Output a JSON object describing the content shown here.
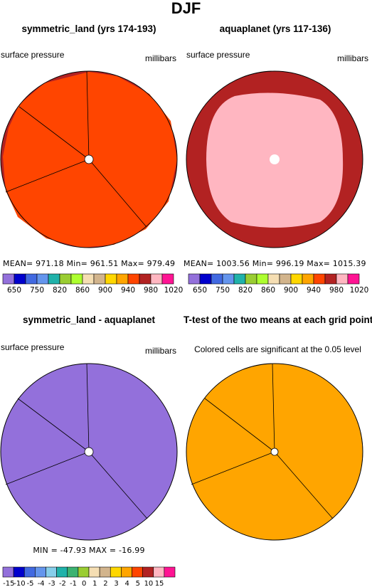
{
  "figure": {
    "title": "DJF"
  },
  "panels": [
    {
      "title": "symmetric_land (yrs 174-193)",
      "left_label": "surface pressure",
      "right_label": "millibars",
      "stats": "MEAN= 971.18    Min= 961.51    Max= 979.49"
    },
    {
      "title": "aquaplanet (yrs 117-136)",
      "left_label": "surface pressure",
      "right_label": "millibars",
      "stats": "MEAN= 1003.56   Min= 996.19    Max= 1015.39"
    },
    {
      "title": "symmetric_land - aquaplanet",
      "left_label": "surface pressure",
      "right_label": "millibars",
      "stats": "MIN = -47.93  MAX = -16.99"
    },
    {
      "title": "T-test of the two means at each grid point",
      "left_label": "Colored cells are significant at the 0.05 level",
      "right_label": "",
      "stats": ""
    }
  ],
  "chart_data": [
    {
      "type": "heatmap",
      "title": "symmetric_land (yrs 174-193)",
      "variable": "surface pressure",
      "units": "millibars",
      "summary": {
        "mean": 971.18,
        "min": 961.51,
        "max": 979.49
      },
      "field": {
        "inner_level": "960-980",
        "inner_color": "#ff4500",
        "outer_level": "980-1000",
        "outer_color": "#b22222"
      },
      "colorbar": {
        "labels": [
          "650",
          "750",
          "820",
          "860",
          "900",
          "940",
          "980",
          "1020"
        ],
        "colors": [
          "#9370db",
          "#0000cd",
          "#4169e1",
          "#6495ed",
          "#20b2aa",
          "#9acd32",
          "#adff2f",
          "#f5deb3",
          "#d2b48c",
          "#ffd700",
          "#ffa500",
          "#ff4500",
          "#b22222",
          "#ffb6c1",
          "#ff1493"
        ]
      }
    },
    {
      "type": "heatmap",
      "title": "aquaplanet (yrs 117-136)",
      "variable": "surface pressure",
      "units": "millibars",
      "summary": {
        "mean": 1003.56,
        "min": 996.19,
        "max": 1015.39
      },
      "field": {
        "inner_level": "1000-1020",
        "inner_color": "#ffb6c1",
        "outer_level": "980-1000",
        "outer_color": "#b22222"
      },
      "colorbar": {
        "labels": [
          "650",
          "750",
          "820",
          "860",
          "900",
          "940",
          "980",
          "1020"
        ],
        "colors": [
          "#9370db",
          "#0000cd",
          "#4169e1",
          "#6495ed",
          "#20b2aa",
          "#9acd32",
          "#adff2f",
          "#f5deb3",
          "#d2b48c",
          "#ffd700",
          "#ffa500",
          "#ff4500",
          "#b22222",
          "#ffb6c1",
          "#ff1493"
        ]
      }
    },
    {
      "type": "heatmap",
      "title": "symmetric_land - aquaplanet",
      "variable": "surface pressure",
      "units": "millibars",
      "summary": {
        "min": -47.93,
        "max": -16.99
      },
      "field": {
        "level": "< -15",
        "color": "#9370db"
      },
      "colorbar": {
        "labels": [
          "-15",
          "-10",
          "-5",
          "-4",
          "-3",
          "-2",
          "-1",
          "0",
          "1",
          "2",
          "3",
          "4",
          "5",
          "10",
          "15"
        ],
        "colors": [
          "#9370db",
          "#0000cd",
          "#4169e1",
          "#6495ed",
          "#87ceeb",
          "#20b2aa",
          "#3cb371",
          "#9acd32",
          "#f5deb3",
          "#d2b48c",
          "#ffd700",
          "#ffa500",
          "#ff4500",
          "#b22222",
          "#ffb6c1",
          "#ff1493"
        ]
      }
    },
    {
      "type": "heatmap",
      "title": "T-test of the two means at each grid point",
      "note": "Colored cells are significant at the 0.05 level",
      "field": {
        "color": "#ffa500"
      }
    }
  ]
}
